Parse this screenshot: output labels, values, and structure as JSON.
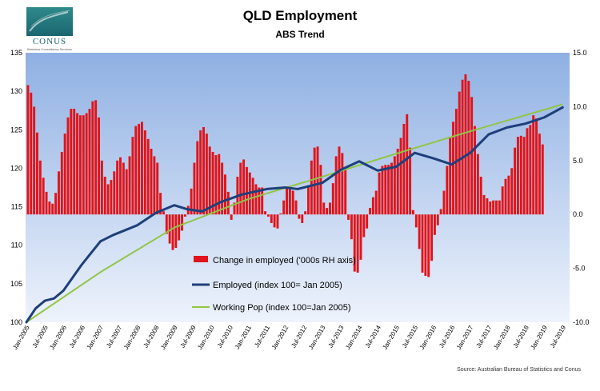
{
  "header": {
    "title": "QLD Employment",
    "subtitle": "ABS Trend",
    "source": "Source: Australian Bureau of Statistics and Conus"
  },
  "logo": {
    "word": "CONUS",
    "tagline": "Business Consultancy Services"
  },
  "colors": {
    "bars": "#e0141a",
    "employed": "#1f3f7a",
    "working_pop": "#92c545",
    "plot_top": "#8fb0e3",
    "plot_bottom": "#eef3fc"
  },
  "chart_data": {
    "type": "bar+line",
    "title": "QLD Employment",
    "subtitle": "ABS Trend",
    "start_month": "Jan-2005",
    "xticks": [
      "Jan-2005",
      "Jul-2005",
      "Jan-2006",
      "Jul-2006",
      "Jan-2007",
      "Jul-2007",
      "Jan-2008",
      "Jul-2008",
      "Jan-2009",
      "Jul-2009",
      "Jan-2010",
      "Jul-2010",
      "Jan-2011",
      "Jul-2011",
      "Jan-2012",
      "Jul-2012",
      "Jan-2013",
      "Jul-2013",
      "Jan-2014",
      "Jul-2014",
      "Jan-2015",
      "Jul-2015",
      "Jan-2016",
      "Jul-2016",
      "Jan-2017",
      "Jul-2017",
      "Jan-2018",
      "Jul-2018",
      "Jan-2019",
      "Jul-2019"
    ],
    "left_axis": {
      "min": 100,
      "max": 135,
      "ticks": [
        100,
        105,
        110,
        115,
        120,
        125,
        130,
        135
      ]
    },
    "right_axis": {
      "min": -10.0,
      "max": 15.0,
      "ticks": [
        "-10.0",
        "-5.0",
        "0.0",
        "5.0",
        "10.0",
        "15.0"
      ]
    },
    "legend": [
      {
        "key": "bars",
        "label": "Change in employed ('000s RH axis)"
      },
      {
        "key": "employed",
        "label": "Employed (index 100= Jan 2005)"
      },
      {
        "key": "working_pop",
        "label": "Working Pop (index 100=Jan 2005)"
      }
    ],
    "series": [
      {
        "name": "Change in employed ('000s RH axis)",
        "axis": "right",
        "kind": "bar",
        "values": [
          12,
          11.3,
          10,
          7.6,
          5,
          3.4,
          2.1,
          1.2,
          1,
          2,
          4,
          5.8,
          7.5,
          9,
          9.8,
          9.8,
          9.4,
          9.2,
          9.2,
          9.4,
          9.8,
          10.5,
          10.6,
          9,
          5,
          3.5,
          2.8,
          3.2,
          4,
          5,
          5.3,
          4.8,
          4.2,
          5.4,
          7.2,
          8.2,
          8.4,
          8.6,
          7.8,
          7,
          6.1,
          5.4,
          4.8,
          2,
          0.3,
          -1.8,
          -2.7,
          -3.3,
          -3.1,
          -2.4,
          -1.5,
          -0.2,
          0.8,
          2.4,
          4.8,
          6.8,
          7.8,
          8.1,
          7.5,
          6.3,
          5.8,
          5.5,
          5.6,
          4.8,
          3.7,
          2.1,
          -0.5,
          1.1,
          3.5,
          4.8,
          5.1,
          4.4,
          3.9,
          3.4,
          2.8,
          2.5,
          2.5,
          0.3,
          -0.2,
          -0.8,
          -1.2,
          -1.3,
          0.1,
          1.3,
          2.5,
          2.6,
          2.2,
          1.3,
          -0.4,
          -0.8,
          0.3,
          2.7,
          5,
          6.2,
          6.3,
          4.6,
          1.1,
          0.6,
          1.1,
          2.9,
          5.4,
          6.3,
          5.7,
          4.3,
          -0.5,
          -2.3,
          -5.3,
          -5.4,
          -4.2,
          -2.1,
          -1.3,
          0.6,
          1.6,
          2.2,
          3.9,
          4.5,
          4.6,
          4.6,
          4.8,
          5.4,
          6.1,
          7.1,
          8.4,
          9.3,
          6.2,
          0.4,
          -1.2,
          -3.2,
          -5.4,
          -5.7,
          -5.8,
          -4.3,
          -1.9,
          -1,
          0.5,
          2.2,
          4.5,
          7.2,
          8.6,
          9.8,
          11.4,
          12.5,
          13,
          12.4,
          10.9,
          8.2,
          5.6,
          3.5,
          1.8,
          1.5,
          1.2,
          1.3,
          1.3,
          1.3,
          2.6,
          3.3,
          3.6,
          4.3,
          6.2,
          7.2,
          7.3,
          7.2,
          8,
          8.3,
          9.2,
          8.9,
          7.5,
          6.5
        ],
        "note": "monthly from Jan-2005"
      },
      {
        "name": "Employed (index 100= Jan 2005)",
        "axis": "left",
        "kind": "line",
        "points": [
          [
            0,
            100
          ],
          [
            3,
            101.8
          ],
          [
            6,
            102.8
          ],
          [
            9,
            103.1
          ],
          [
            12,
            104.1
          ],
          [
            18,
            107.5
          ],
          [
            24,
            110.5
          ],
          [
            28,
            111.3
          ],
          [
            36,
            112.6
          ],
          [
            42,
            114.2
          ],
          [
            48,
            115.2
          ],
          [
            52,
            114.7
          ],
          [
            57,
            114.4
          ],
          [
            63,
            115.6
          ],
          [
            70,
            116.6
          ],
          [
            78,
            117.3
          ],
          [
            84,
            117.5
          ],
          [
            88,
            117.3
          ],
          [
            96,
            118.1
          ],
          [
            102,
            119.8
          ],
          [
            108,
            120.9
          ],
          [
            114,
            119.7
          ],
          [
            120,
            120.2
          ],
          [
            126,
            122
          ],
          [
            132,
            121.3
          ],
          [
            138,
            120.5
          ],
          [
            144,
            122
          ],
          [
            150,
            124.4
          ],
          [
            156,
            125.3
          ],
          [
            162,
            125.8
          ],
          [
            168,
            126.6
          ],
          [
            174,
            127.9
          ]
        ]
      },
      {
        "name": "Working Pop (index 100=Jan 2005)",
        "axis": "left",
        "kind": "line",
        "points": [
          [
            0,
            100
          ],
          [
            24,
            106.5
          ],
          [
            48,
            112.3
          ],
          [
            72,
            116
          ],
          [
            96,
            118.9
          ],
          [
            120,
            121.9
          ],
          [
            144,
            124.8
          ],
          [
            174,
            128.3
          ]
        ]
      }
    ]
  }
}
